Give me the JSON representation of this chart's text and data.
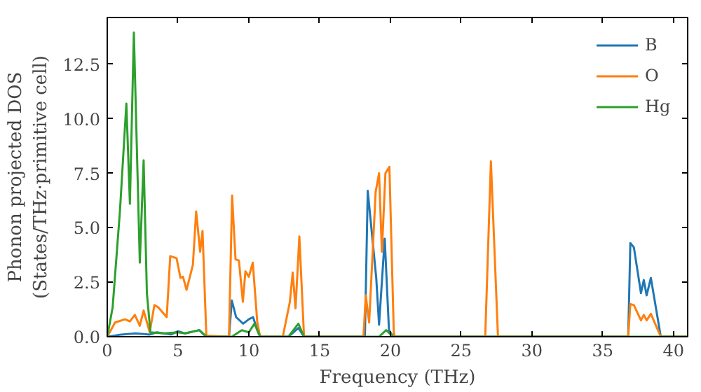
{
  "chart_data": {
    "type": "line",
    "xlabel": "Frequency (THz)",
    "ylabel": "Phonon projected DOS\n(States/THz·primitive cell)",
    "xlim": [
      0,
      41
    ],
    "ylim": [
      0,
      14.65
    ],
    "xticks": [
      0,
      5,
      10,
      15,
      20,
      25,
      30,
      35,
      40
    ],
    "yticks": [
      {
        "value": 0,
        "label": "0.0"
      },
      {
        "value": 2.5,
        "label": "2.5"
      },
      {
        "value": 5,
        "label": "5.0"
      },
      {
        "value": 7.5,
        "label": "7.5"
      },
      {
        "value": 10,
        "label": "10.0"
      },
      {
        "value": 12.5,
        "label": "12.5"
      }
    ],
    "grid": false,
    "legend": "top right",
    "line_style": "solid",
    "marker": "none",
    "series": [
      {
        "name": "B",
        "color": "#1f77b4",
        "x": [
          0,
          1,
          2,
          3,
          3.5,
          4.5,
          5,
          5.5,
          6.5,
          7,
          8.6,
          8.8,
          9.1,
          9.6,
          10,
          10.3,
          10.6,
          10.8,
          12.8,
          13.5,
          13.9,
          18.2,
          18.4,
          19.0,
          19.2,
          19.6,
          19.9,
          20.2,
          36.8,
          36.95,
          37.2,
          37.7,
          37.9,
          38.1,
          38.4,
          39.1,
          41
        ],
        "values": [
          0,
          0.1,
          0.15,
          0.1,
          0.2,
          0.1,
          0.25,
          0.15,
          0.3,
          0,
          0,
          1.66,
          0.9,
          0.6,
          0.8,
          0.9,
          0.3,
          0,
          0,
          0.4,
          0,
          0,
          6.7,
          2.7,
          0.55,
          4.5,
          0.3,
          0,
          0,
          4.3,
          4.1,
          2.0,
          2.6,
          1.9,
          2.7,
          0,
          0
        ]
      },
      {
        "name": "O",
        "color": "#ff7f0e",
        "x": [
          0,
          0.55,
          1.25,
          1.6,
          1.95,
          2.3,
          2.57,
          3.0,
          3.33,
          3.6,
          4.2,
          4.45,
          4.9,
          5.17,
          5.35,
          5.6,
          6.05,
          6.28,
          6.56,
          6.73,
          7.0,
          8.6,
          8.82,
          9.06,
          9.3,
          9.58,
          9.76,
          10.0,
          10.28,
          10.6,
          10.8,
          12.4,
          12.9,
          13.1,
          13.3,
          13.57,
          13.9,
          18.1,
          18.26,
          18.5,
          18.96,
          19.2,
          19.4,
          19.65,
          19.93,
          20.24,
          20.3,
          26.7,
          27.1,
          27.6,
          36.8,
          36.95,
          37.2,
          37.7,
          37.9,
          38.1,
          38.4,
          39.1,
          41
        ],
        "values": [
          0,
          0.65,
          0.8,
          0.7,
          1.0,
          0.5,
          1.2,
          0.2,
          1.45,
          1.35,
          0.9,
          3.7,
          3.6,
          2.7,
          2.75,
          2.15,
          3.3,
          5.75,
          3.9,
          4.85,
          0.05,
          0,
          6.48,
          3.55,
          3.5,
          1.6,
          3.0,
          2.75,
          3.4,
          0.65,
          0,
          0,
          1.6,
          2.95,
          1.3,
          4.6,
          0,
          0,
          1.9,
          0.65,
          6.65,
          7.5,
          3.9,
          7.5,
          7.8,
          0.2,
          0,
          0,
          8.05,
          0,
          0,
          1.5,
          1.45,
          0.75,
          1.0,
          0.75,
          1.05,
          0,
          0
        ]
      },
      {
        "name": "Hg",
        "color": "#2ca02c",
        "x": [
          0,
          0.38,
          0.9,
          1.35,
          1.6,
          1.88,
          2.3,
          2.57,
          2.8,
          3.05,
          4,
          5,
          5.5,
          6.5,
          7,
          8.8,
          9.5,
          10,
          10.4,
          10.8,
          12.8,
          13.5,
          13.9,
          19.2,
          19.7,
          20.2,
          41
        ],
        "values": [
          0,
          1.34,
          5.8,
          10.7,
          6.1,
          13.96,
          3.4,
          8.1,
          2.0,
          0.2,
          0.15,
          0.2,
          0.15,
          0.3,
          0,
          0,
          0.3,
          0.2,
          0.6,
          0,
          0,
          0.6,
          0,
          0,
          0.3,
          0,
          0
        ]
      }
    ]
  }
}
